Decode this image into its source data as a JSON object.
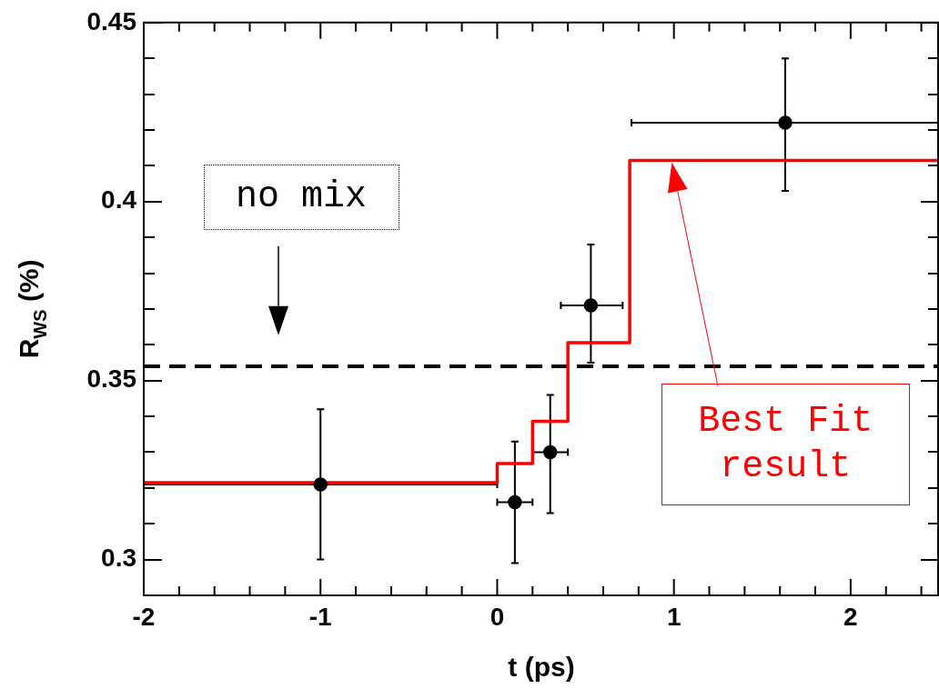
{
  "chart_data": {
    "type": "scatter",
    "xlabel": "t (ps)",
    "ylabel": "R$_{WS}$ (%)",
    "xlim": [
      -2,
      2.5
    ],
    "ylim": [
      0.29,
      0.45
    ],
    "xticks": [
      -2,
      {
        "value": -1.8,
        "label": null
      },
      {
        "value": -1.6,
        "label": null
      },
      {
        "value": -1.4,
        "label": null
      },
      {
        "value": -1.2,
        "label": null
      },
      -1,
      {
        "value": -0.8,
        "label": null
      },
      {
        "value": -0.6,
        "label": null
      },
      {
        "value": -0.4,
        "label": null
      },
      {
        "value": -0.2,
        "label": null
      },
      0,
      {
        "value": 0.2,
        "label": null
      },
      {
        "value": 0.4,
        "label": null
      },
      {
        "value": 0.6,
        "label": null
      },
      {
        "value": 0.8,
        "label": null
      },
      1,
      {
        "value": 1.2,
        "label": null
      },
      {
        "value": 1.4,
        "label": null
      },
      {
        "value": 1.6,
        "label": null
      },
      {
        "value": 1.8,
        "label": null
      },
      2,
      {
        "value": 2.2,
        "label": null
      },
      {
        "value": 2.4,
        "label": null
      }
    ],
    "yticks": [
      {
        "value": 0.29,
        "label": null
      },
      0.3,
      {
        "value": 0.31,
        "label": null
      },
      {
        "value": 0.32,
        "label": null
      },
      {
        "value": 0.33,
        "label": null
      },
      {
        "value": 0.34,
        "label": null
      },
      0.35,
      {
        "value": 0.36,
        "label": null
      },
      {
        "value": 0.37,
        "label": null
      },
      {
        "value": 0.38,
        "label": null
      },
      {
        "value": 0.39,
        "label": null
      },
      0.4,
      {
        "value": 0.41,
        "label": null
      },
      {
        "value": 0.42,
        "label": null
      },
      {
        "value": 0.43,
        "label": null
      },
      {
        "value": 0.44,
        "label": null
      },
      0.45
    ],
    "grid": false,
    "legend": false,
    "series": [
      {
        "type": "step",
        "color": "#ff0000",
        "marker": "none",
        "x": [
          -2,
          0,
          0.2,
          0.4,
          0.75,
          2.5
        ],
        "values": [
          0.3215,
          0.3268,
          0.3386,
          0.3606,
          0.4115,
          0.4115
        ]
      },
      {
        "color": "#000000",
        "marker": "circle",
        "x": [
          -1,
          0.1,
          0.3,
          0.53,
          1.63
        ],
        "values": [
          0.321,
          0.316,
          0.33,
          0.371,
          0.422
        ],
        "errors": [
          0.021,
          0.017,
          [
            0.313,
            0.346
          ],
          [
            0.355,
            0.388
          ],
          [
            0.403,
            0.44
          ]
        ],
        "xerrors": [
          1,
          0.1,
          0.1,
          [
            0.36,
            0.71
          ],
          0.87
        ]
      }
    ],
    "ref_lines": [
      {
        "axis": "y",
        "value": 0.354,
        "color": "#000000",
        "line_style": "dashed"
      }
    ],
    "annotations": [
      "no mix",
      "Best Fit result"
    ]
  }
}
